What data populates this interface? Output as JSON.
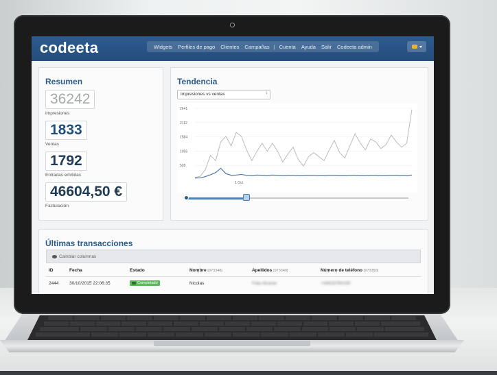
{
  "header": {
    "logo": "codeeta",
    "nav": [
      "Widgets",
      "Perfiles de pago",
      "Clientes",
      "Campañas",
      "|",
      "Cuenta",
      "Ayuda",
      "Salir",
      "Codeeta admin"
    ]
  },
  "resumen": {
    "title": "Resumen",
    "stats": [
      {
        "value": "36242",
        "label": "Impresiones"
      },
      {
        "value": "1833",
        "label": "Ventas"
      },
      {
        "value": "1792",
        "label": "Entradas emitidas"
      },
      {
        "value": "46604,50 €",
        "label": "Facturación"
      }
    ]
  },
  "tendencia": {
    "title": "Tendencia",
    "select_value": "Impresiones vs ventas"
  },
  "chart_data": {
    "type": "line",
    "title": "",
    "x_tick_labels": [
      "1 Oct"
    ],
    "y_ticks": [
      2641,
      2112,
      1584,
      1056,
      528
    ],
    "ylim": [
      0,
      2641
    ],
    "series": [
      {
        "values": [
          80,
          120,
          360,
          900,
          700,
          1400,
          1600,
          1250,
          1750,
          1600,
          1100,
          700,
          1050,
          1350,
          1050,
          1350,
          1050,
          650,
          950,
          1200,
          750,
          500,
          850,
          1000,
          850,
          700,
          1100,
          1450,
          1000,
          800,
          1250,
          1700,
          1350,
          1100,
          1500,
          1400,
          1150,
          1300,
          1650,
          1400,
          1200,
          1350,
          2600
        ],
        "color": "#b5b5b5"
      },
      {
        "values": [
          60,
          60,
          110,
          180,
          260,
          420,
          220,
          160,
          170,
          190,
          160,
          150,
          170,
          160,
          150,
          170,
          160,
          150,
          160,
          160,
          150,
          150,
          160,
          160,
          150,
          150,
          160,
          160,
          150,
          150,
          160,
          160,
          150,
          150,
          160,
          160,
          150,
          150,
          160,
          160,
          150,
          150,
          170
        ],
        "color": "#3b6ea5"
      }
    ]
  },
  "transacciones": {
    "title": "Últimas transacciones",
    "toolbar_label": "Cambiar columnas",
    "columns": [
      {
        "label": "ID",
        "sub": ""
      },
      {
        "label": "Fecha",
        "sub": ""
      },
      {
        "label": "Estado",
        "sub": ""
      },
      {
        "label": "Nombre",
        "sub": "[973348]"
      },
      {
        "label": "Apellidos",
        "sub": "[973349]"
      },
      {
        "label": "Número de teléfono",
        "sub": "[973350]"
      }
    ],
    "rows": [
      {
        "id": "2444",
        "fecha": "30/10/2015 22:06:35",
        "estado": "Completado",
        "nombre": "Nicolas",
        "apellidos": "Fata Alcaraz",
        "telefono": "+34616784190"
      }
    ]
  }
}
